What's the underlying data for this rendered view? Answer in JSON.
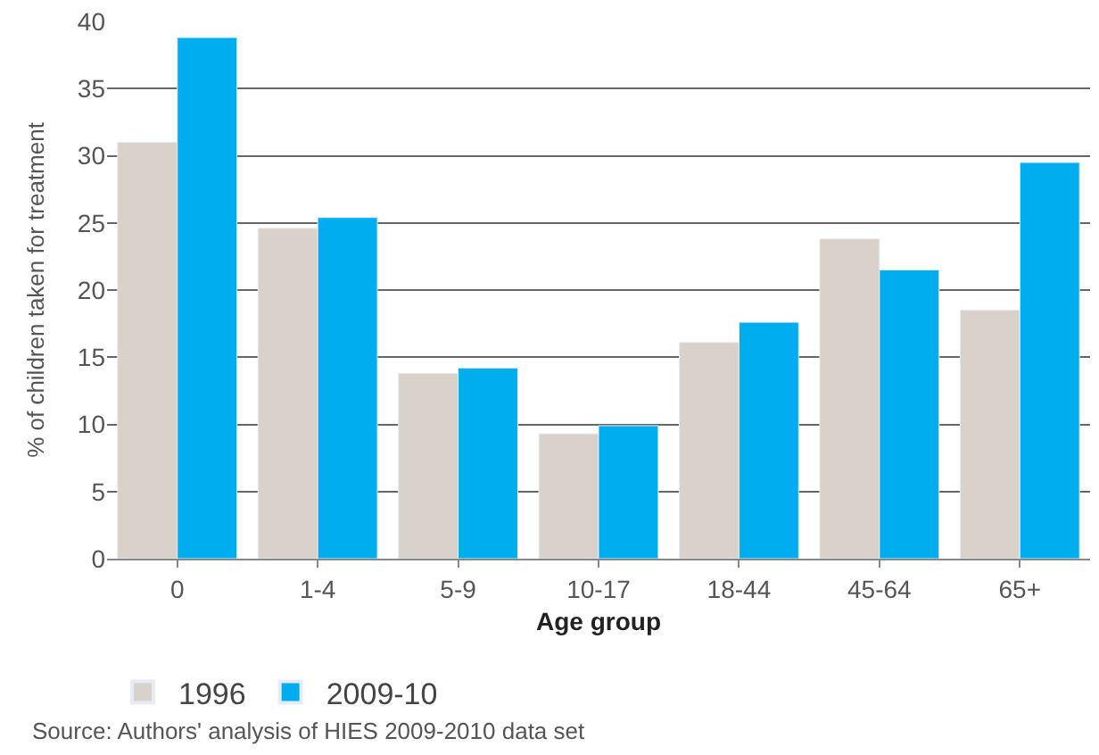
{
  "chart_data": {
    "type": "bar",
    "xlabel": "Age group",
    "ylabel": "% of children taken for treatment",
    "categories": [
      "0",
      "1-4",
      "5-9",
      "10-17",
      "18-44",
      "45-64",
      "65+"
    ],
    "series": [
      {
        "name": "1996",
        "color": "#d8d2ca",
        "values": [
          31,
          24.6,
          13.8,
          9.3,
          16.1,
          23.8,
          18.5
        ]
      },
      {
        "name": "2009-10",
        "color": "#00aeef",
        "values": [
          38.8,
          25.4,
          14.2,
          9.9,
          17.6,
          21.5,
          29.5
        ]
      }
    ],
    "ylim": [
      0,
      40
    ],
    "yticks": [
      0,
      5,
      10,
      15,
      20,
      25,
      30,
      35,
      40
    ],
    "grid": "y",
    "legend": "bottom left",
    "annotations": [
      "Source: Authors' analysis of HIES 2009-2010 data set"
    ]
  }
}
